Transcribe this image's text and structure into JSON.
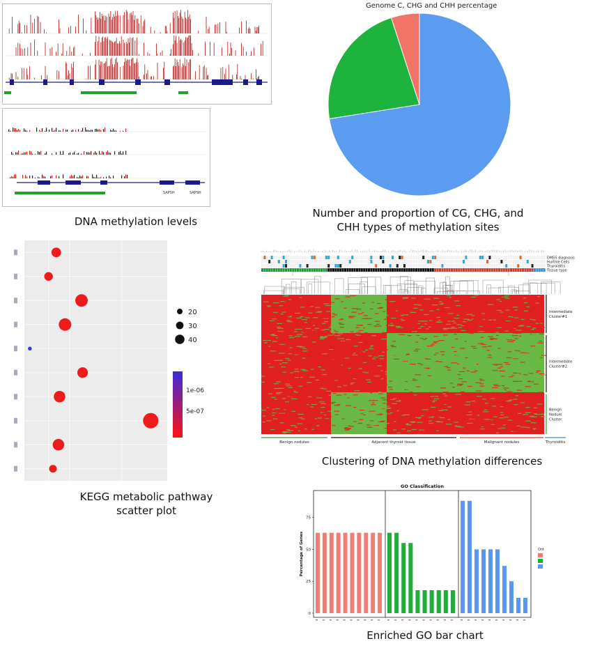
{
  "captions": {
    "methylation": "DNA methylation levels",
    "pie": "Number and proportion of CG, CHG, and CHH types of methylation sites",
    "pie_line1": "Number and proportion of CG, CHG, and",
    "pie_line2": "CHH types of methylation sites",
    "kegg_line1": "KEGG metabolic pathway",
    "kegg_line2": "scatter plot",
    "cluster": "Clustering of DNA methylation differences",
    "go": "Enriched GO bar chart"
  },
  "track_labels": {
    "gene1": "SAPSH",
    "gene2": "SAPSH"
  },
  "colors": {
    "red": "#e8262a",
    "green": "#4caf3c",
    "blue": "#5b9bf0",
    "salmon": "#f07468",
    "pie_green": "#1db33c",
    "dark_red": "#b31414"
  },
  "chart_data": [
    {
      "type": "pie",
      "title": "Genome C, CHG and CHH percentage",
      "slices": [
        {
          "value": 72.5,
          "color": "#5b9bf0"
        },
        {
          "value": 22.5,
          "color": "#1db33c"
        },
        {
          "value": 5.0,
          "color": "#f07468"
        }
      ]
    },
    {
      "type": "scatter",
      "title": "",
      "size_legend": [
        "20",
        "30",
        "40"
      ],
      "color_legend": [
        "1e-06",
        "5e-07"
      ],
      "points": [
        {
          "x": 1.9,
          "y": 10,
          "size": 20,
          "color": "#ee1b1b"
        },
        {
          "x": 1.2,
          "y": 9,
          "size": 18,
          "color": "#ee1b1b"
        },
        {
          "x": 4.2,
          "y": 8,
          "size": 26,
          "color": "#ee1b1b"
        },
        {
          "x": 2.7,
          "y": 7,
          "size": 26,
          "color": "#ee1b1b"
        },
        {
          "x": -0.5,
          "y": 6,
          "size": 8,
          "color": "#3b3bdb"
        },
        {
          "x": 4.3,
          "y": 5,
          "size": 22,
          "color": "#ee1b1b"
        },
        {
          "x": 2.2,
          "y": 4,
          "size": 24,
          "color": "#ee1b1b"
        },
        {
          "x": 10.5,
          "y": 3,
          "size": 32,
          "color": "#ee1b1b"
        },
        {
          "x": 2.1,
          "y": 2,
          "size": 24,
          "color": "#ee1b1b"
        },
        {
          "x": 1.6,
          "y": 1,
          "size": 16,
          "color": "#ee1b1b"
        }
      ],
      "xlim": [
        -1,
        12
      ],
      "ylim": [
        0.5,
        10.5
      ]
    },
    {
      "type": "heatmap",
      "annotation_rows": [
        "DMSS diagnosis",
        "Hurthle Cells",
        "Thyroiditis",
        "Tissue type"
      ],
      "row_clusters": [
        "Intermediate Cluster#1",
        "Intermediate Cluster#2",
        "Benign Nodule Cluster"
      ],
      "column_groups": [
        "Benign nodules",
        "Adjacent thyroid tissue",
        "Malignant nodules",
        "Thyroiditis"
      ]
    },
    {
      "type": "bar",
      "title": "GO Classification",
      "ylabel": "Percentage of Genes",
      "ylim": [
        0,
        95
      ],
      "yticks": [
        "0",
        "25",
        "50",
        "75"
      ],
      "legend_title": "Ont",
      "series": [
        {
          "color": "#f07c74",
          "values": [
            63,
            63,
            63,
            63,
            63,
            63,
            63,
            63,
            63,
            63
          ]
        },
        {
          "color": "#1fae3a",
          "values": [
            63,
            63,
            55,
            55,
            18,
            18,
            18,
            18,
            18,
            18
          ]
        },
        {
          "color": "#5b97f0",
          "values": [
            88,
            88,
            50,
            50,
            50,
            50,
            37,
            25,
            12,
            12
          ]
        }
      ]
    }
  ]
}
